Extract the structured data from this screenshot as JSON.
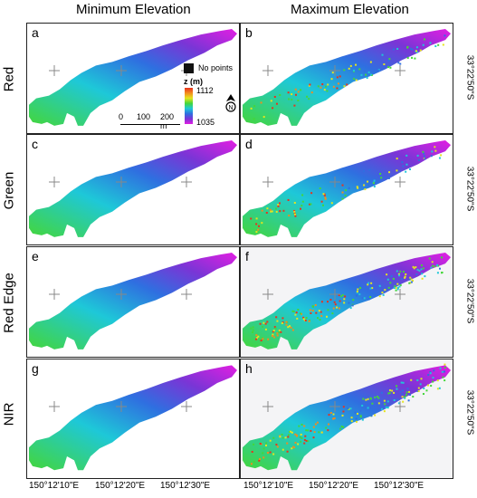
{
  "columns": [
    "Minimum Elevation",
    "Maximum Elevation"
  ],
  "rows": [
    "Red",
    "Green",
    "Red Edge",
    "NIR"
  ],
  "panel_labels": [
    "a",
    "b",
    "c",
    "d",
    "e",
    "f",
    "g",
    "h"
  ],
  "latitude_label": "33°22'50\"S",
  "longitude_labels": [
    "150°12'10\"E",
    "150°12'20\"E",
    "150°12'30\"E"
  ],
  "legend": {
    "no_points": "No points",
    "z_title": "z (m)",
    "z_max": "1112",
    "z_min": "1035",
    "colors": [
      "#e8321e",
      "#f28b1e",
      "#e5e51e",
      "#44d63a",
      "#1ec8d8",
      "#2f6fe0",
      "#7a35d6",
      "#e21ee2"
    ]
  },
  "scalebar": {
    "ticks": [
      "0",
      "100",
      "200 m"
    ]
  },
  "north_icon": "north-arrow-icon"
}
